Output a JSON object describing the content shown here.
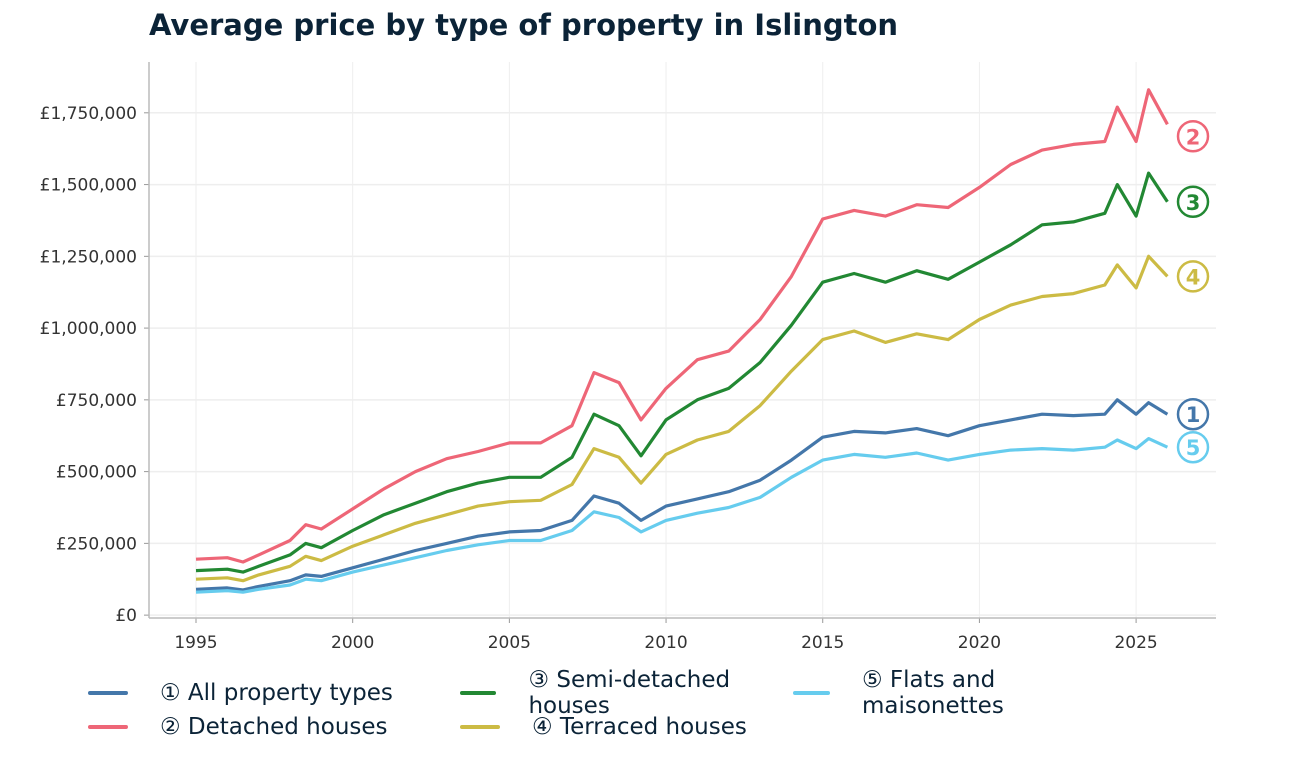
{
  "chart_data": {
    "type": "line",
    "title": "Average price by type of property in Islington",
    "xlabel": "",
    "ylabel": "",
    "xlim": [
      1993.5,
      2027.55
    ],
    "ylim": [
      -10000,
      1927000
    ],
    "grid": true,
    "legend_position": "bottom",
    "x_ticks": [
      1995,
      2000,
      2005,
      2010,
      2015,
      2020,
      2025
    ],
    "x_tick_labels": [
      "1995",
      "2000",
      "2005",
      "2010",
      "2015",
      "2020",
      "2025"
    ],
    "y_ticks": [
      0,
      250000,
      500000,
      750000,
      1000000,
      1250000,
      1500000,
      1750000
    ],
    "y_tick_labels": [
      "£0",
      "£250,000",
      "£500,000",
      "£750,000",
      "£1,000,000",
      "£1,250,000",
      "£1,500,000",
      "£1,750,000"
    ],
    "x": [
      1995,
      1996,
      1996.5,
      1997,
      1998,
      1998.5,
      1999,
      2000,
      2001,
      2002,
      2003,
      2004,
      2005,
      2006,
      2007,
      2007.7,
      2008.5,
      2009.2,
      2010,
      2011,
      2012,
      2013,
      2014,
      2015,
      2016,
      2017,
      2018,
      2019,
      2020,
      2021,
      2022,
      2023,
      2024,
      2024.4,
      2025,
      2025.4,
      2026
    ],
    "series": [
      {
        "name": "① All property types",
        "marker": "1",
        "color": "#4477aa",
        "values": [
          90,
          95,
          88,
          100,
          120,
          140,
          135,
          165,
          195,
          225,
          250,
          275,
          290,
          295,
          330,
          415,
          390,
          330,
          380,
          405,
          430,
          470,
          540,
          620,
          640,
          635,
          650,
          625,
          660,
          680,
          700,
          695,
          700,
          750,
          700,
          740,
          700
        ]
      },
      {
        "name": "② Detached houses",
        "marker": "2",
        "color": "#ee6677",
        "values": [
          195,
          200,
          185,
          210,
          260,
          315,
          300,
          370,
          440,
          500,
          545,
          570,
          600,
          600,
          660,
          845,
          810,
          680,
          790,
          890,
          920,
          1030,
          1180,
          1380,
          1410,
          1390,
          1430,
          1420,
          1490,
          1570,
          1620,
          1640,
          1650,
          1770,
          1650,
          1830,
          1710
        ]
      },
      {
        "name": "③ Semi-detached houses",
        "marker": "3",
        "color": "#228833",
        "values": [
          155,
          160,
          150,
          170,
          210,
          250,
          235,
          295,
          350,
          390,
          430,
          460,
          480,
          480,
          550,
          700,
          660,
          555,
          680,
          750,
          790,
          880,
          1010,
          1160,
          1190,
          1160,
          1200,
          1170,
          1230,
          1290,
          1360,
          1370,
          1400,
          1500,
          1390,
          1540,
          1440
        ]
      },
      {
        "name": "④ Terraced houses",
        "marker": "4",
        "color": "#ccbb44",
        "values": [
          125,
          130,
          120,
          140,
          170,
          205,
          190,
          240,
          280,
          320,
          350,
          380,
          395,
          400,
          455,
          580,
          550,
          460,
          560,
          610,
          640,
          730,
          850,
          960,
          990,
          950,
          980,
          960,
          1030,
          1080,
          1110,
          1120,
          1150,
          1220,
          1140,
          1250,
          1180
        ]
      },
      {
        "name": "⑤ Flats and maisonettes",
        "marker": "5",
        "color": "#66ccee",
        "values": [
          80,
          85,
          80,
          90,
          105,
          125,
          120,
          150,
          175,
          200,
          225,
          245,
          260,
          260,
          295,
          360,
          340,
          290,
          330,
          355,
          375,
          410,
          480,
          540,
          560,
          550,
          565,
          540,
          560,
          575,
          580,
          575,
          585,
          610,
          580,
          615,
          585
        ]
      }
    ],
    "values_unit": "thousand GBP"
  }
}
